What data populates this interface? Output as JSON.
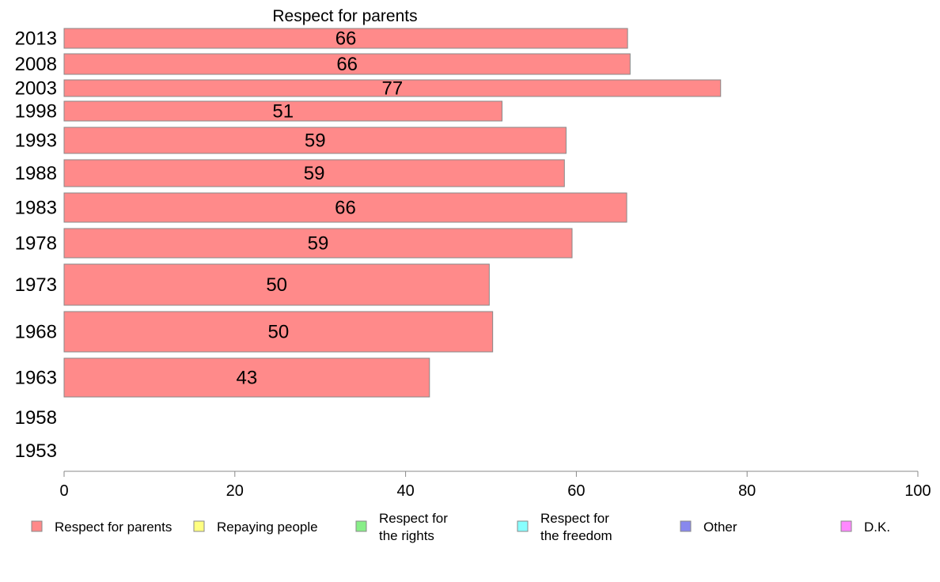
{
  "chart_data": {
    "type": "bar",
    "orientation": "horizontal",
    "title": "Respect for parents",
    "xlabel": "",
    "ylabel": "",
    "xlim": [
      0,
      100
    ],
    "x_ticks": [
      "0",
      "20",
      "40",
      "60",
      "80",
      "100"
    ],
    "categories": [
      "2013",
      "2008",
      "2003",
      "1998",
      "1993",
      "1988",
      "1983",
      "1978",
      "1973",
      "1968",
      "1963",
      "1958",
      "1953"
    ],
    "series": [
      {
        "name": "Respect for parents",
        "values": [
          66,
          66.3,
          76.9,
          51.3,
          58.8,
          58.6,
          65.9,
          59.5,
          49.8,
          50.2,
          42.8,
          null,
          null
        ],
        "labels": [
          "66",
          "66",
          "77",
          "51",
          "59",
          "59",
          "66",
          "59",
          "50",
          "50",
          "43",
          "",
          ""
        ]
      }
    ],
    "legend": {
      "placement": "bottom",
      "entries": [
        {
          "lines": [
            "Respect for parents"
          ],
          "color": "#ff8a8a"
        },
        {
          "lines": [
            "Repaying people"
          ],
          "color": "#ffff80"
        },
        {
          "lines": [
            "Respect for",
            "the rights"
          ],
          "color": "#88ee88"
        },
        {
          "lines": [
            "Respect for",
            "the freedom"
          ],
          "color": "#88ffff"
        },
        {
          "lines": [
            "Other"
          ],
          "color": "#8888ee"
        },
        {
          "lines": [
            "D.K."
          ],
          "color": "#ff88ff"
        }
      ]
    },
    "grid": false,
    "colors": {
      "bar": "#ff8a8a",
      "bar_stroke": "#888888",
      "axis": "#888888"
    }
  }
}
